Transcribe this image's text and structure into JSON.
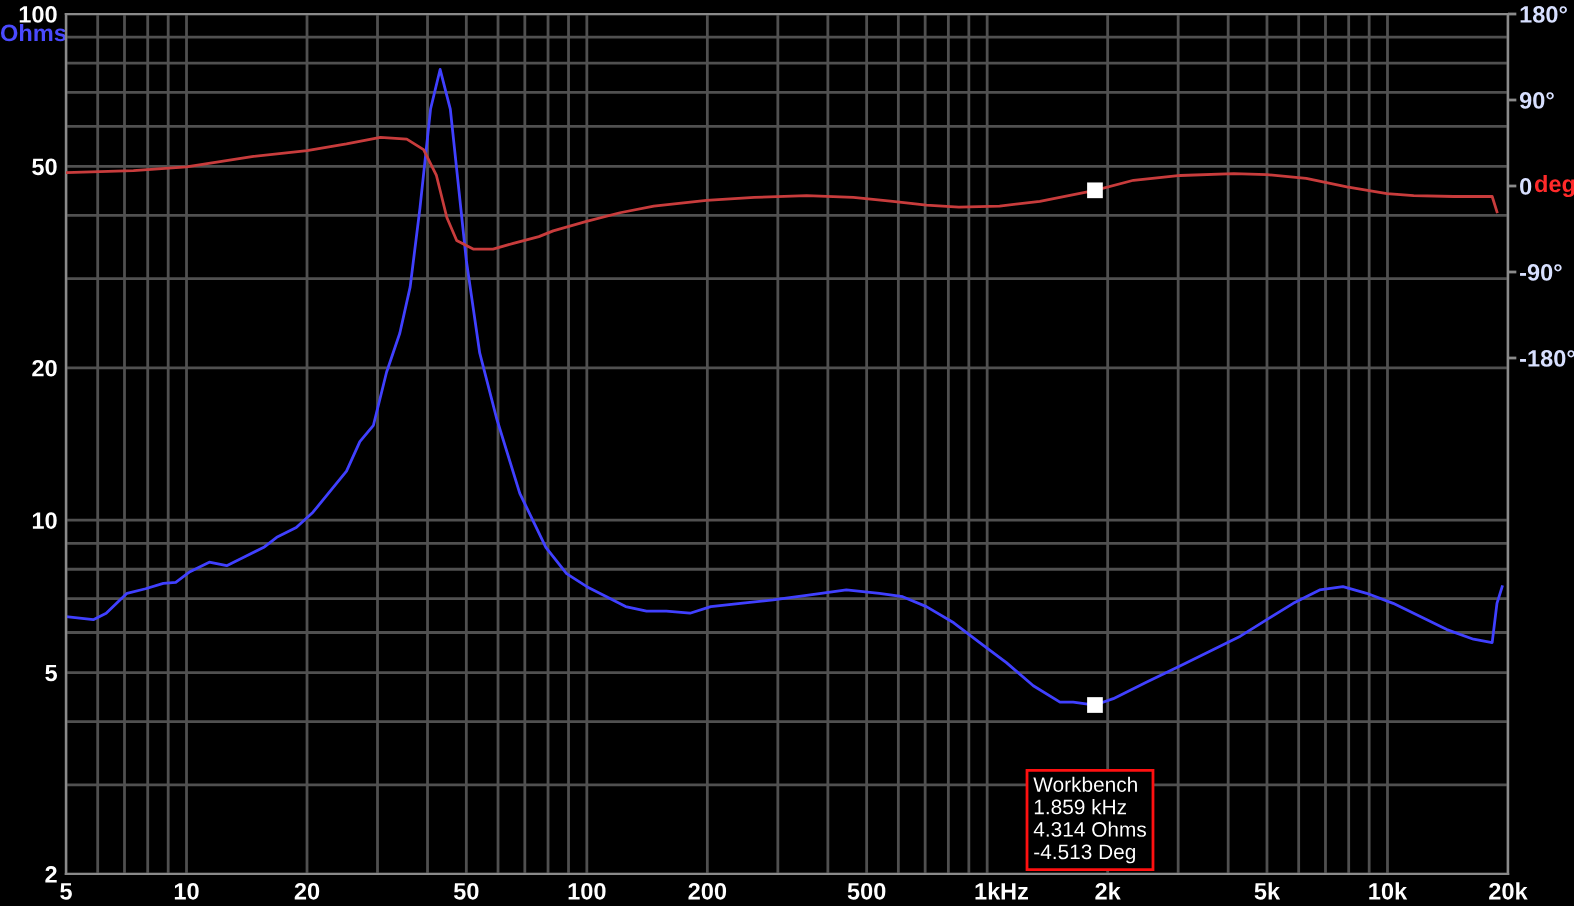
{
  "chart_data": {
    "type": "line",
    "xlabel": "Hz",
    "ylabel": "Ohms",
    "y2label": "deg",
    "log": "xy",
    "grid": true,
    "xlim": [
      5,
      20000
    ],
    "xticks": [
      5,
      {
        "value": 6,
        "label": null
      },
      {
        "value": 7,
        "label": null
      },
      {
        "value": 8,
        "label": null
      },
      {
        "value": 9,
        "label": null
      },
      10,
      20,
      {
        "value": 30,
        "label": null
      },
      {
        "value": 40,
        "label": null
      },
      50,
      {
        "value": 60,
        "label": null
      },
      {
        "value": 70,
        "label": null
      },
      {
        "value": 80,
        "label": null
      },
      {
        "value": 90,
        "label": null
      },
      100,
      200,
      {
        "value": 300,
        "label": null
      },
      {
        "value": 400,
        "label": null
      },
      500,
      {
        "value": 600,
        "label": null
      },
      {
        "value": 700,
        "label": null
      },
      {
        "value": 800,
        "label": null
      },
      {
        "value": 900,
        "label": null
      },
      {
        "value": 1000,
        "label": "1k"
      },
      {
        "value": 2000,
        "label": "2k"
      },
      {
        "value": 3000,
        "label": null
      },
      {
        "value": 4000,
        "label": null
      },
      {
        "value": 5000,
        "label": "5k"
      },
      {
        "value": 6000,
        "label": null
      },
      {
        "value": 7000,
        "label": null
      },
      {
        "value": 8000,
        "label": null
      },
      {
        "value": 9000,
        "label": null
      },
      {
        "value": 10000,
        "label": "10k"
      },
      {
        "value": 20000,
        "label": "20k"
      }
    ],
    "ylim": [
      2,
      100
    ],
    "yticks": [
      2,
      {
        "value": 3,
        "label": null
      },
      {
        "value": 4,
        "label": null
      },
      5,
      {
        "value": 6,
        "label": null
      },
      {
        "value": 7,
        "label": null
      },
      {
        "value": 8,
        "label": null
      },
      {
        "value": 9,
        "label": null
      },
      10,
      20,
      {
        "value": 30,
        "label": null
      },
      {
        "value": 40,
        "label": null
      },
      50,
      {
        "value": 60,
        "label": null
      },
      {
        "value": 70,
        "label": null
      },
      {
        "value": 80,
        "label": null
      },
      {
        "value": 90,
        "label": null
      },
      100
    ],
    "y2lim": [
      -720,
      180
    ],
    "y2ticks": [
      {
        "value": -180,
        "label": "-180°"
      },
      {
        "value": -90,
        "label": "-90°"
      },
      0,
      {
        "value": 90,
        "label": "90°"
      },
      {
        "value": 180,
        "label": "180°"
      }
    ],
    "series": [
      {
        "color": "#4040ff",
        "x": [
          5,
          5.85,
          6.3,
          7.1,
          7.9,
          8.75,
          9.4,
          10.2,
          11.4,
          12.6,
          14.1,
          15.6,
          16.8,
          18.8,
          20.7,
          22.4,
          25.1,
          27.1,
          29.3,
          31.6,
          34.1,
          36.2,
          38.3,
          40.7,
          43,
          45.6,
          50,
          54,
          59.5,
          68,
          79,
          89,
          100,
          112,
          125,
          141,
          158,
          181,
          204,
          242,
          292,
          354,
          445,
          538,
          615,
          705,
          825,
          958,
          1117,
          1304,
          1520,
          1640,
          1859,
          2066,
          2505,
          3040,
          3686,
          4290,
          4995,
          5815,
          6770,
          7740,
          8870,
          10330,
          12075,
          14070,
          16400,
          18260,
          18770,
          19340
        ],
        "values": [
          6.45,
          6.36,
          6.55,
          7.17,
          7.32,
          7.5,
          7.54,
          7.91,
          8.26,
          8.13,
          8.5,
          8.84,
          9.25,
          9.67,
          10.37,
          11.2,
          12.5,
          14.3,
          15.4,
          19.6,
          23.4,
          28.9,
          41.4,
          64.9,
          77.7,
          64.9,
          32.6,
          21.4,
          15.9,
          11.3,
          8.84,
          7.84,
          7.39,
          7.06,
          6.75,
          6.61,
          6.61,
          6.55,
          6.75,
          6.85,
          6.96,
          7.1,
          7.28,
          7.17,
          7.06,
          6.75,
          6.27,
          5.73,
          5.23,
          4.71,
          4.37,
          4.37,
          4.314,
          4.44,
          4.79,
          5.16,
          5.56,
          5.9,
          6.36,
          6.85,
          7.28,
          7.39,
          7.17,
          6.85,
          6.45,
          6.08,
          5.82,
          5.73,
          6.85,
          7.39
        ]
      },
      {
        "axis": "y2",
        "color": "#c83c3c",
        "x": [
          5,
          7.37,
          10,
          14.7,
          20,
          25.1,
          30.5,
          35.5,
          39.1,
          42.1,
          44.7,
          47.3,
          52,
          58.3,
          65.5,
          75.9,
          82.4,
          99.8,
          121,
          147,
          199,
          262,
          354,
          463,
          581,
          705,
          850,
          1074,
          1354,
          1859,
          2320,
          3040,
          4130,
          4995,
          6265,
          7915,
          9970,
          11625,
          14650,
          18260,
          18770
        ],
        "values": [
          14,
          16,
          20,
          31,
          37,
          44,
          51,
          49,
          38,
          11,
          -33,
          -57,
          -66,
          -66,
          -60,
          -53,
          -47,
          -37,
          -28,
          -21,
          -15,
          -12,
          -10,
          -12,
          -16,
          -20,
          -22,
          -21,
          -16,
          -4.513,
          6,
          11,
          13,
          12,
          8,
          -1,
          -8,
          -10,
          -11,
          -11,
          -27
        ]
      },
      {
        "type": "scatter",
        "marker": "square",
        "color": "#ffffff",
        "x": [
          1859
        ],
        "values": [
          4.314
        ]
      },
      {
        "type": "scatter",
        "axis": "y2",
        "marker": "square",
        "color": "#ffffff",
        "x": [
          1859
        ],
        "values": [
          -4.513
        ]
      }
    ],
    "annotations": [
      "Workbench\n1.859 kHz\n4.314 Ohms\n-4.513 Deg"
    ]
  }
}
